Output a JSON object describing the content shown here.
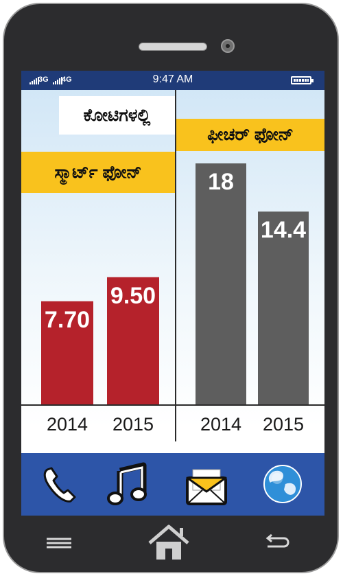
{
  "status_bar": {
    "net1": "3G",
    "net2": "4G",
    "time": "9:47 AM"
  },
  "chart_data": [
    {
      "type": "bar",
      "title": "ಸ್ಮಾರ್ಟ್ ಫೋನ್",
      "unit": "ಕೋಟಿಗಳಲ್ಲಿ",
      "categories": [
        "2014",
        "2015"
      ],
      "values": [
        7.7,
        9.5
      ],
      "value_labels": [
        "7.70",
        "9.50"
      ],
      "color": "#b5222b",
      "ylim": [
        0,
        18
      ]
    },
    {
      "type": "bar",
      "title": "ಫೀಚರ್ ಫೋನ್",
      "categories": [
        "2014",
        "2015"
      ],
      "values": [
        18,
        14.4
      ],
      "value_labels": [
        "18",
        "14.4"
      ],
      "color": "#5e5e5e",
      "ylim": [
        0,
        18
      ]
    }
  ],
  "dock": [
    "phone-icon",
    "music-icon",
    "mail-icon",
    "globe-icon"
  ],
  "home_bar": [
    "menu-icon",
    "home-icon",
    "back-icon"
  ]
}
